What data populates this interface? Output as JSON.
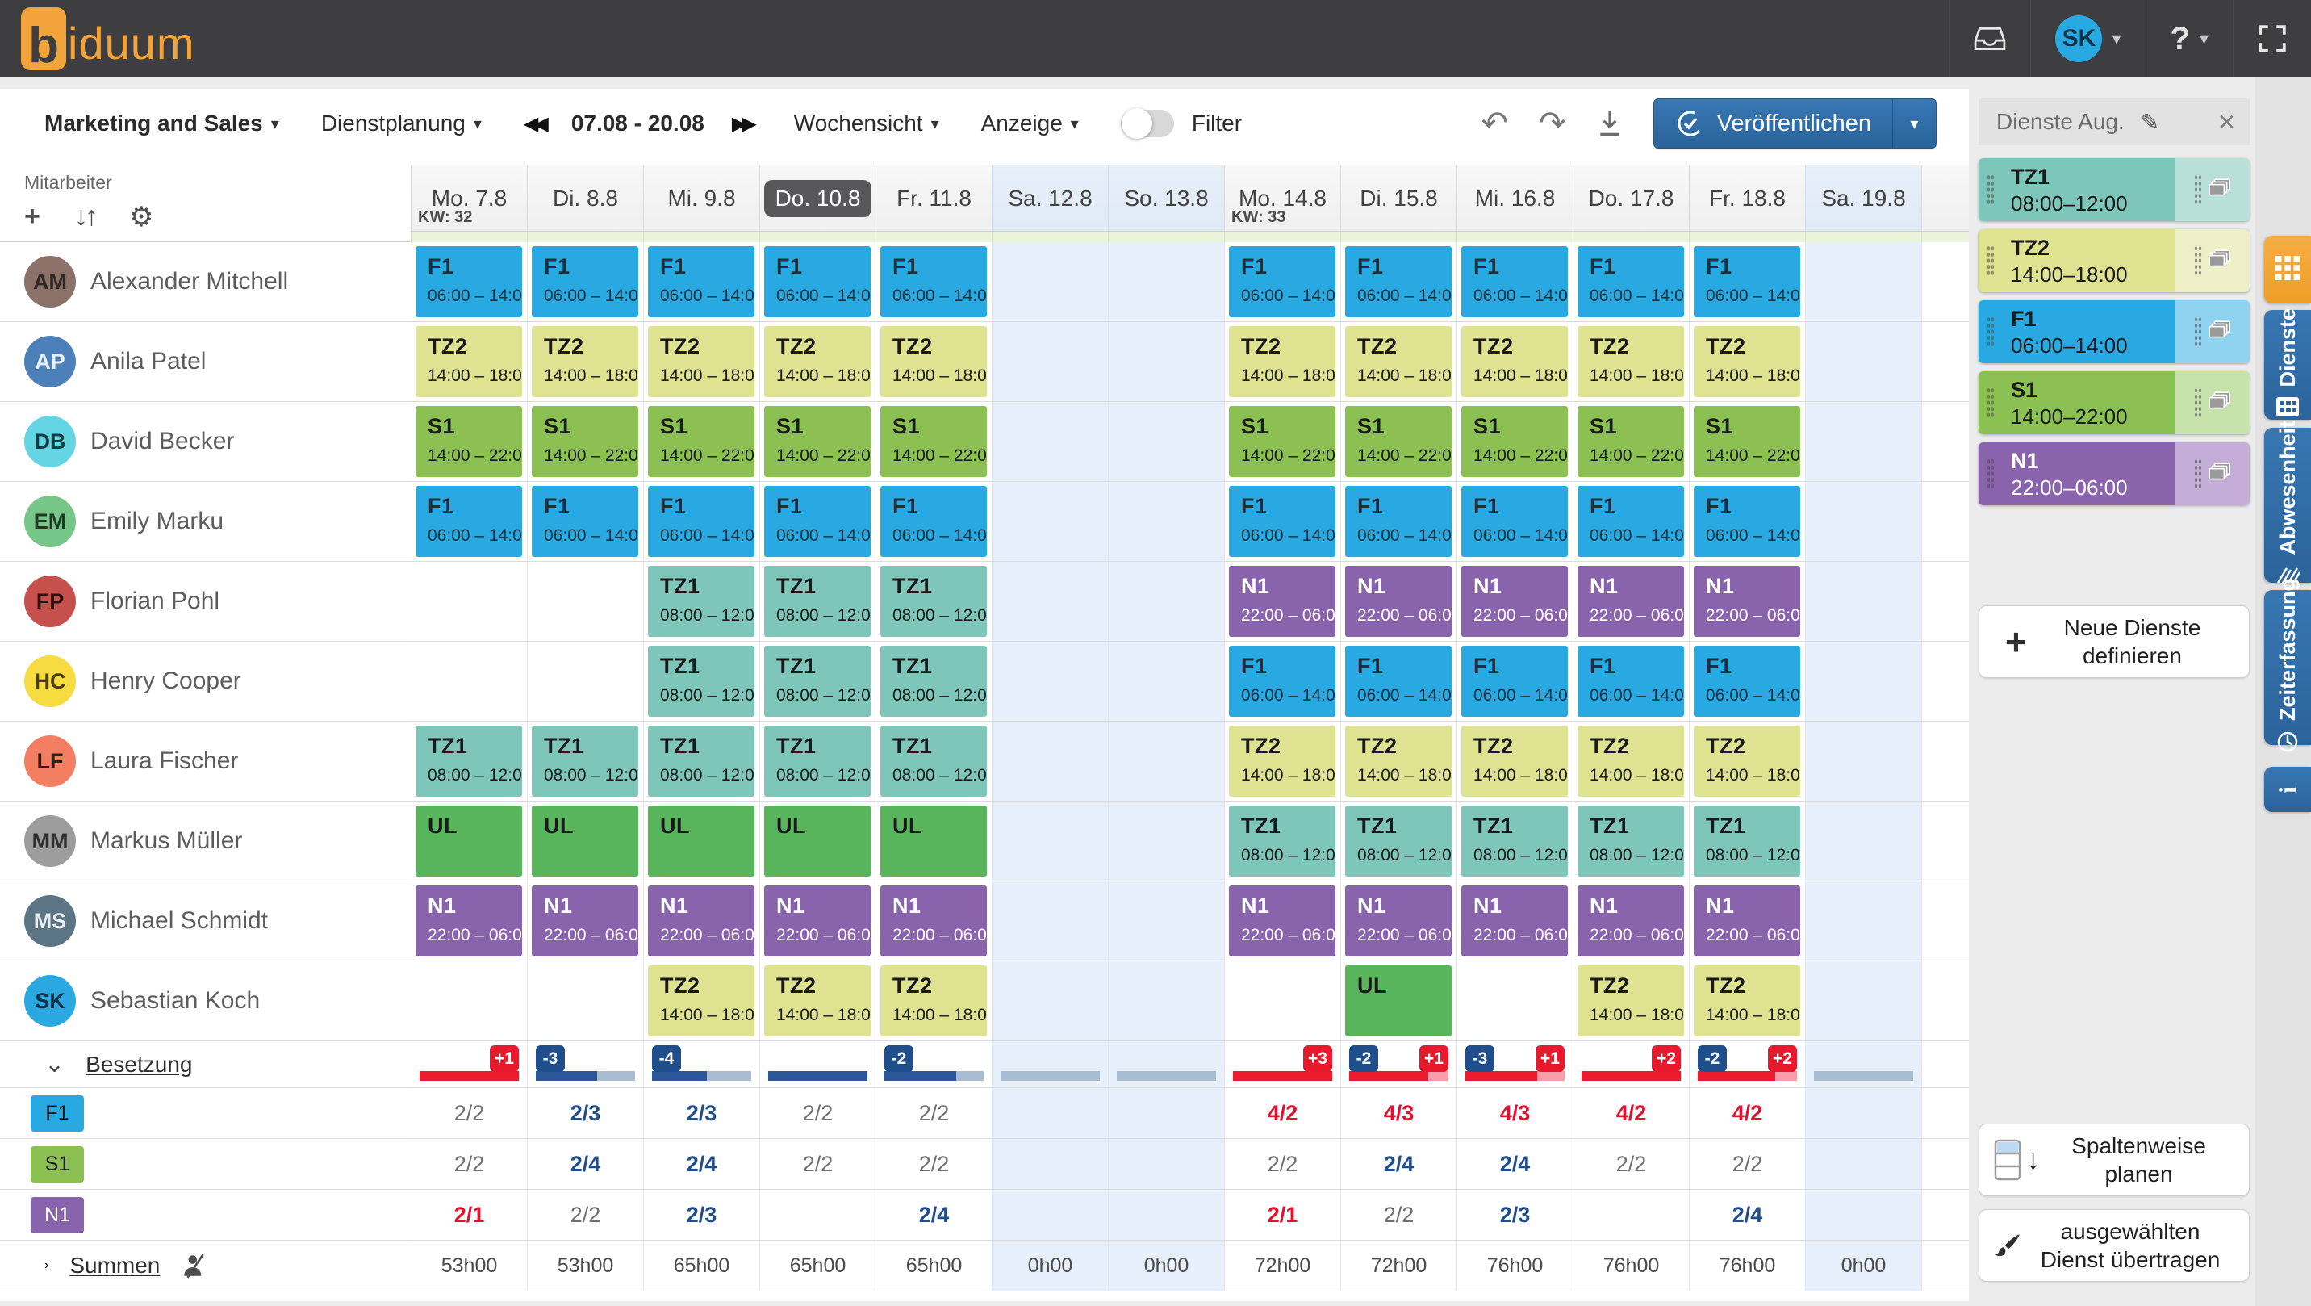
{
  "topbar": {
    "logo_prefix": "b",
    "logo_suffix": "iduum",
    "avatar_initials": "SK"
  },
  "icons": {
    "caret": "▾",
    "prev": "◀◀",
    "next": "▶▶",
    "undo": "↶",
    "redo": "↷",
    "plus": "+",
    "sort": "↓↑",
    "gear": "⚙",
    "pencil": "✎",
    "close": "×",
    "chevron_down": "⌄",
    "chevron_right": "›",
    "help": "?"
  },
  "toolbar": {
    "team_selector": "Marketing and Sales",
    "planning_menu": "Dienstplanung",
    "date_range": "07.08 - 20.08",
    "view_selector": "Wochensicht",
    "display_menu": "Anzeige",
    "filter_label": "Filter",
    "publish_label": "Veröffentlichen"
  },
  "left_panel": {
    "title": "Mitarbeiter"
  },
  "dates": [
    {
      "label": "Mo. 7.8",
      "kw": "KW: 32",
      "weekend": false,
      "today": false
    },
    {
      "label": "Di. 8.8",
      "kw": null,
      "weekend": false,
      "today": false
    },
    {
      "label": "Mi. 9.8",
      "kw": null,
      "weekend": false,
      "today": false
    },
    {
      "label": "Do. 10.8",
      "kw": null,
      "weekend": false,
      "today": true
    },
    {
      "label": "Fr. 11.8",
      "kw": null,
      "weekend": false,
      "today": false
    },
    {
      "label": "Sa. 12.8",
      "kw": null,
      "weekend": true,
      "today": false
    },
    {
      "label": "So. 13.8",
      "kw": null,
      "weekend": true,
      "today": false
    },
    {
      "label": "Mo. 14.8",
      "kw": "KW: 33",
      "weekend": false,
      "today": false
    },
    {
      "label": "Di. 15.8",
      "kw": null,
      "weekend": false,
      "today": false
    },
    {
      "label": "Mi. 16.8",
      "kw": null,
      "weekend": false,
      "today": false
    },
    {
      "label": "Do. 17.8",
      "kw": null,
      "weekend": false,
      "today": false
    },
    {
      "label": "Fr. 18.8",
      "kw": null,
      "weekend": false,
      "today": false
    },
    {
      "label": "Sa. 19.8",
      "kw": null,
      "weekend": true,
      "today": false
    }
  ],
  "shift_types": {
    "F1": {
      "label": "F1",
      "time": "06:00 – 14:00",
      "bg": "#29A9E1",
      "fg": "#16323E"
    },
    "TZ1": {
      "label": "TZ1",
      "time": "08:00 – 12:00",
      "bg": "#7EC6B9",
      "fg": "#1A1A1A"
    },
    "TZ2": {
      "label": "TZ2",
      "time": "14:00 – 18:00",
      "bg": "#DFE391",
      "fg": "#1A1A1A"
    },
    "S1": {
      "label": "S1",
      "time": "14:00 – 22:00",
      "bg": "#8BC152",
      "fg": "#1A1A1A"
    },
    "N1": {
      "label": "N1",
      "time": "22:00 – 06:00",
      "bg": "#8A63AD",
      "fg": "#FFFFFF"
    },
    "UL": {
      "label": "UL",
      "time": "",
      "bg": "#58B55C",
      "fg": "#1A1A1A"
    }
  },
  "employees": [
    {
      "initials": "AM",
      "name": "Alexander Mitchell",
      "avatar_bg": "#8C7168",
      "avatar_fg": "#2E2724",
      "shifts": [
        "F1",
        "F1",
        "F1",
        "F1",
        "F1",
        "",
        "",
        "F1",
        "F1",
        "F1",
        "F1",
        "F1",
        ""
      ]
    },
    {
      "initials": "AP",
      "name": "Anila Patel",
      "avatar_bg": "#4B80B8",
      "avatar_fg": "#EAF2FA",
      "shifts": [
        "TZ2",
        "TZ2",
        "TZ2",
        "TZ2",
        "TZ2",
        "",
        "",
        "TZ2",
        "TZ2",
        "TZ2",
        "TZ2",
        "TZ2",
        ""
      ]
    },
    {
      "initials": "DB",
      "name": "David Becker",
      "avatar_bg": "#63D5E3",
      "avatar_fg": "#153A40",
      "shifts": [
        "S1",
        "S1",
        "S1",
        "S1",
        "S1",
        "",
        "",
        "S1",
        "S1",
        "S1",
        "S1",
        "S1",
        ""
      ]
    },
    {
      "initials": "EM",
      "name": "Emily Marku",
      "avatar_bg": "#76C787",
      "avatar_fg": "#1D3A22",
      "shifts": [
        "F1",
        "F1",
        "F1",
        "F1",
        "F1",
        "",
        "",
        "F1",
        "F1",
        "F1",
        "F1",
        "F1",
        ""
      ]
    },
    {
      "initials": "FP",
      "name": "Florian Pohl",
      "avatar_bg": "#C6504B",
      "avatar_fg": "#2E0F0E",
      "shifts": [
        "",
        "",
        "TZ1",
        "TZ1",
        "TZ1",
        "",
        "",
        "N1",
        "N1",
        "N1",
        "N1",
        "N1",
        ""
      ]
    },
    {
      "initials": "HC",
      "name": "Henry Cooper",
      "avatar_bg": "#F6DC40",
      "avatar_fg": "#4A3F08",
      "shifts": [
        "",
        "",
        "TZ1",
        "TZ1",
        "TZ1",
        "",
        "",
        "F1",
        "F1",
        "F1",
        "F1",
        "F1",
        ""
      ]
    },
    {
      "initials": "LF",
      "name": "Laura Fischer",
      "avatar_bg": "#F37E62",
      "avatar_fg": "#3C1C12",
      "shifts": [
        "TZ1",
        "TZ1",
        "TZ1",
        "TZ1",
        "TZ1",
        "",
        "",
        "TZ2",
        "TZ2",
        "TZ2",
        "TZ2",
        "TZ2",
        ""
      ]
    },
    {
      "initials": "MM",
      "name": "Markus Müller",
      "avatar_bg": "#9D9D9D",
      "avatar_fg": "#2F2F2F",
      "shifts": [
        "UL",
        "UL",
        "UL",
        "UL",
        "UL",
        "",
        "",
        "TZ1",
        "TZ1",
        "TZ1",
        "TZ1",
        "TZ1",
        ""
      ]
    },
    {
      "initials": "MS",
      "name": "Michael Schmidt",
      "avatar_bg": "#5B7585",
      "avatar_fg": "#E8EEF2",
      "shifts": [
        "N1",
        "N1",
        "N1",
        "N1",
        "N1",
        "",
        "",
        "N1",
        "N1",
        "N1",
        "N1",
        "N1",
        ""
      ]
    },
    {
      "initials": "SK",
      "name": "Sebastian Koch",
      "avatar_bg": "#2AA9E0",
      "avatar_fg": "#0E3247",
      "shifts": [
        "",
        "",
        "TZ2",
        "TZ2",
        "TZ2",
        "",
        "",
        "",
        "UL",
        "",
        "TZ2",
        "TZ2",
        ""
      ]
    }
  ],
  "besetzung": {
    "label": "Besetzung",
    "legend": [
      {
        "code": "F1",
        "bg": "#29A9E1",
        "fg": "#1A1A1A"
      },
      {
        "code": "S1",
        "bg": "#8BC152",
        "fg": "#1A1A1A"
      },
      {
        "code": "N1",
        "bg": "#8A63AD",
        "fg": "#FFFFFF"
      }
    ],
    "colors": {
      "over": "#E8192C",
      "under": "#1F4E8C",
      "bar_red": "#ED1B2E",
      "bar_pink": "#F59FA8",
      "bar_blue": "#2B5797",
      "bar_muted": "#A9BDD2"
    },
    "columns": [
      {
        "badges": [
          {
            "text": "+1",
            "type": "over"
          }
        ],
        "bar": {
          "palette": "red",
          "fill": 1
        }
      },
      {
        "badges": [
          {
            "text": "-3",
            "type": "under"
          }
        ],
        "bar": {
          "palette": "blue",
          "fill": 0.62
        }
      },
      {
        "badges": [
          {
            "text": "-4",
            "type": "under"
          }
        ],
        "bar": {
          "palette": "blue",
          "fill": 0.55
        }
      },
      {
        "badges": [],
        "bar": {
          "palette": "blue",
          "fill": 1
        }
      },
      {
        "badges": [
          {
            "text": "-2",
            "type": "under"
          }
        ],
        "bar": {
          "palette": "blue",
          "fill": 0.72
        }
      },
      {
        "badges": [],
        "bar": {
          "palette": "muted",
          "fill": 0
        }
      },
      {
        "badges": [],
        "bar": {
          "palette": "muted",
          "fill": 0
        }
      },
      {
        "badges": [
          {
            "text": "+3",
            "type": "over"
          }
        ],
        "bar": {
          "palette": "red",
          "fill": 1
        }
      },
      {
        "badges": [
          {
            "text": "-2",
            "type": "under"
          },
          {
            "text": "+1",
            "type": "over"
          }
        ],
        "bar": {
          "palette": "red",
          "fill": 0.8
        }
      },
      {
        "badges": [
          {
            "text": "-3",
            "type": "under"
          },
          {
            "text": "+1",
            "type": "over"
          }
        ],
        "bar": {
          "palette": "red",
          "fill": 0.72
        }
      },
      {
        "badges": [
          {
            "text": "+2",
            "type": "over"
          }
        ],
        "bar": {
          "palette": "red",
          "fill": 1
        }
      },
      {
        "badges": [
          {
            "text": "-2",
            "type": "under"
          },
          {
            "text": "+2",
            "type": "over"
          }
        ],
        "bar": {
          "palette": "red",
          "fill": 0.78
        }
      },
      {
        "badges": [],
        "bar": {
          "palette": "muted",
          "fill": 0
        }
      }
    ],
    "rows": [
      {
        "code": "F1",
        "cells": [
          {
            "text": "2/2",
            "state": "ok"
          },
          {
            "text": "2/3",
            "state": "under"
          },
          {
            "text": "2/3",
            "state": "under"
          },
          {
            "text": "2/2",
            "state": "ok"
          },
          {
            "text": "2/2",
            "state": "ok"
          },
          null,
          null,
          {
            "text": "4/2",
            "state": "over"
          },
          {
            "text": "4/3",
            "state": "over"
          },
          {
            "text": "4/3",
            "state": "over"
          },
          {
            "text": "4/2",
            "state": "over"
          },
          {
            "text": "4/2",
            "state": "over"
          },
          null
        ]
      },
      {
        "code": "S1",
        "cells": [
          {
            "text": "2/2",
            "state": "ok"
          },
          {
            "text": "2/4",
            "state": "under"
          },
          {
            "text": "2/4",
            "state": "under"
          },
          {
            "text": "2/2",
            "state": "ok"
          },
          {
            "text": "2/2",
            "state": "ok"
          },
          null,
          null,
          {
            "text": "2/2",
            "state": "ok"
          },
          {
            "text": "2/4",
            "state": "under"
          },
          {
            "text": "2/4",
            "state": "under"
          },
          {
            "text": "2/2",
            "state": "ok"
          },
          {
            "text": "2/2",
            "state": "ok"
          },
          null
        ]
      },
      {
        "code": "N1",
        "cells": [
          {
            "text": "2/1",
            "state": "over"
          },
          {
            "text": "2/2",
            "state": "ok"
          },
          {
            "text": "2/3",
            "state": "under"
          },
          null,
          {
            "text": "2/4",
            "state": "under"
          },
          null,
          null,
          {
            "text": "2/1",
            "state": "over"
          },
          {
            "text": "2/2",
            "state": "ok"
          },
          {
            "text": "2/3",
            "state": "under"
          },
          null,
          {
            "text": "2/4",
            "state": "under"
          },
          null
        ]
      }
    ]
  },
  "summen": {
    "label": "Summen",
    "values": [
      "53h00",
      "53h00",
      "65h00",
      "65h00",
      "65h00",
      "0h00",
      "0h00",
      "72h00",
      "72h00",
      "76h00",
      "76h00",
      "76h00",
      "0h00"
    ]
  },
  "right_panel": {
    "title": "Dienste Aug.",
    "chips": [
      {
        "code": "TZ1",
        "time": "08:00–12:00",
        "bg": "#7EC6B9",
        "bg_light": "#B9E0D8",
        "fg": "#1A1A1A"
      },
      {
        "code": "TZ2",
        "time": "14:00–18:00",
        "bg": "#DFE391",
        "bg_light": "#EDEFC6",
        "fg": "#1A1A1A"
      },
      {
        "code": "F1",
        "time": "06:00–14:00",
        "bg": "#29A9E1",
        "bg_light": "#90D3F1",
        "fg": "#1A1A1A"
      },
      {
        "code": "S1",
        "time": "14:00–22:00",
        "bg": "#8BC152",
        "bg_light": "#C8E2AB",
        "fg": "#1A1A1A"
      },
      {
        "code": "N1",
        "time": "22:00–06:00",
        "bg": "#8A63AD",
        "bg_light": "#C4AED8",
        "fg": "#FFFFFF"
      }
    ],
    "new_shifts_line1": "Neue Dienste",
    "new_shifts_line2": "definieren",
    "plan_line1": "Spaltenweise",
    "plan_line2": "planen",
    "transfer_line1": "ausgewählten",
    "transfer_line2": "Dienst übertragen"
  },
  "side_tabs": [
    {
      "label": "",
      "icon": "grid-icon",
      "style": "orange"
    },
    {
      "label": "Dienste",
      "icon": "calendar-grid-icon",
      "style": "blue"
    },
    {
      "label": "Abwesenheit",
      "icon": "absence-icon",
      "style": "blue"
    },
    {
      "label": "Zeiterfassung",
      "icon": "clock-icon",
      "style": "blue"
    },
    {
      "label": "i",
      "icon": "info-icon",
      "style": "blue"
    }
  ]
}
